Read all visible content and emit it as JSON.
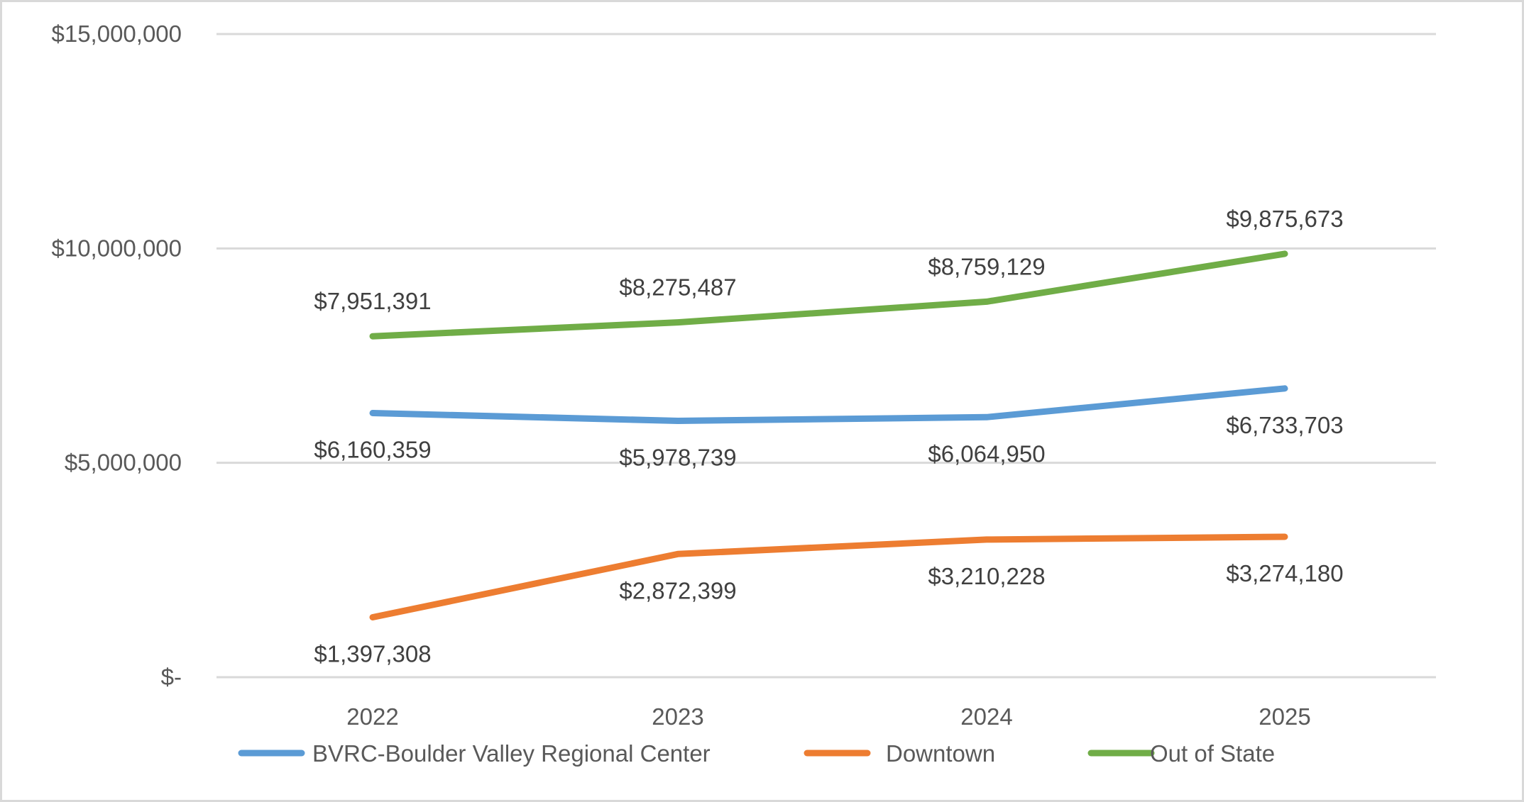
{
  "chart_data": {
    "type": "line",
    "title": "",
    "xlabel": "",
    "ylabel": "",
    "categories": [
      "2022",
      "2023",
      "2024",
      "2025"
    ],
    "ylim": [
      0,
      15000000
    ],
    "y_ticks": [
      {
        "value": 0,
        "label": "$-"
      },
      {
        "value": 5000000,
        "label": "$5,000,000"
      },
      {
        "value": 10000000,
        "label": "$10,000,000"
      },
      {
        "value": 15000000,
        "label": "$15,000,000"
      }
    ],
    "grid": true,
    "legend_position": "bottom",
    "series": [
      {
        "name": "BVRC-Boulder Valley Regional Center",
        "color": "#5b9bd5",
        "values": [
          6160359,
          5978739,
          6064950,
          6733703
        ],
        "labels": [
          "$6,160,359",
          "$5,978,739",
          "$6,064,950",
          "$6,733,703"
        ],
        "label_position": "below"
      },
      {
        "name": "Downtown",
        "color": "#ed7d31",
        "values": [
          1397308,
          2872399,
          3210228,
          3274180
        ],
        "labels": [
          "$1,397,308",
          "$2,872,399",
          "$3,210,228",
          "$3,274,180"
        ],
        "label_position": "below"
      },
      {
        "name": "Out of State",
        "color": "#70ad47",
        "values": [
          7951391,
          8275487,
          8759129,
          9875673
        ],
        "labels": [
          "$7,951,391",
          "$8,275,487",
          "$8,759,129",
          "$9,875,673"
        ],
        "label_position": "above"
      }
    ]
  }
}
